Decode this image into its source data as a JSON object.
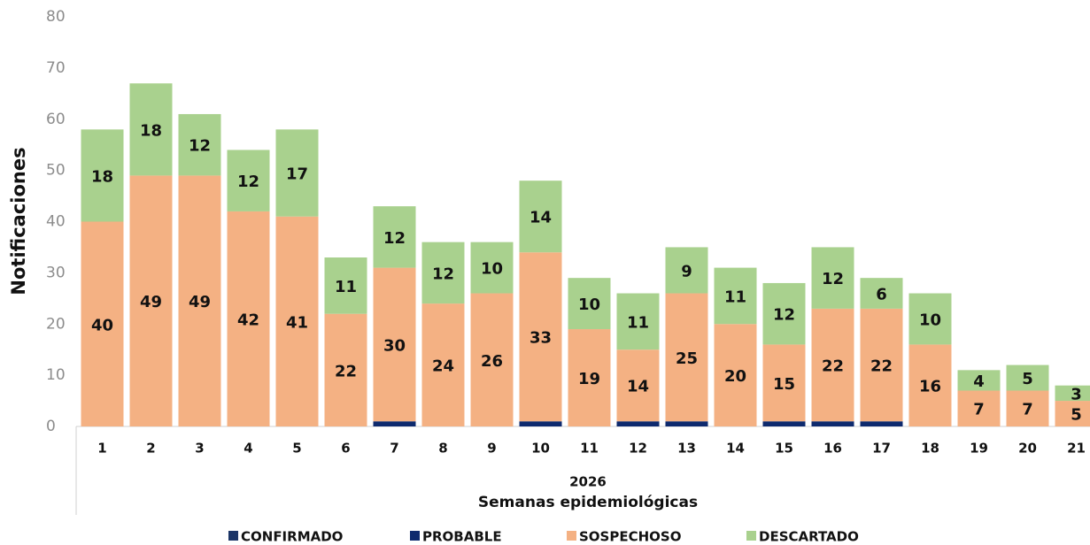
{
  "chart_data": {
    "type": "stacked_bar",
    "y_label": "Notificaciones",
    "x_label_top": "2026",
    "x_label": "Semanas epidemiológicas",
    "categories": [
      "1",
      "2",
      "3",
      "4",
      "5",
      "6",
      "7",
      "8",
      "9",
      "10",
      "11",
      "12",
      "13",
      "14",
      "15",
      "16",
      "17",
      "18",
      "19",
      "20",
      "21"
    ],
    "series": [
      {
        "name": "CONFIRMADO",
        "color": "#1c3567",
        "values": [
          0,
          0,
          0,
          0,
          0,
          0,
          0,
          0,
          0,
          0,
          0,
          0,
          0,
          0,
          0,
          0,
          0,
          0,
          0,
          0,
          0
        ]
      },
      {
        "name": "PROBABLE",
        "color": "#0e2a6e",
        "values": [
          0,
          0,
          0,
          0,
          0,
          0,
          1,
          0,
          0,
          1,
          0,
          1,
          1,
          0,
          1,
          1,
          1,
          0,
          0,
          0,
          0
        ]
      },
      {
        "name": "SOSPECHOSO",
        "color": "#f4b183",
        "values": [
          40,
          49,
          49,
          42,
          41,
          22,
          30,
          24,
          26,
          33,
          19,
          14,
          25,
          20,
          15,
          22,
          22,
          16,
          7,
          7,
          5
        ]
      },
      {
        "name": "DESCARTADO",
        "color": "#a9d18e",
        "values": [
          18,
          18,
          12,
          12,
          17,
          11,
          12,
          12,
          10,
          14,
          10,
          11,
          9,
          11,
          12,
          12,
          6,
          10,
          4,
          5,
          3
        ]
      }
    ],
    "labeled_series": [
      2,
      3
    ],
    "ylim": [
      0,
      80
    ],
    "yticks": [
      0,
      10,
      20,
      30,
      40,
      50,
      60,
      70,
      80
    ],
    "grid": false
  }
}
